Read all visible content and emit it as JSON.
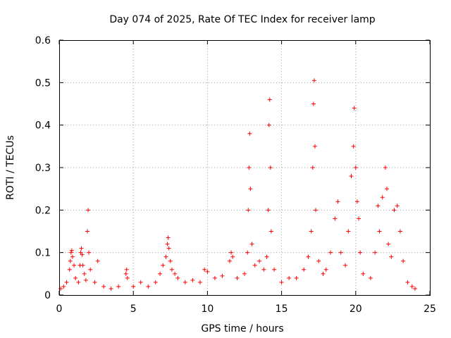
{
  "chart_data": {
    "type": "scatter",
    "title": "Day 074 of 2025, Rate Of TEC Index for receiver lamp",
    "xlabel": "GPS time / hours",
    "ylabel": "ROTI / TECUs",
    "xlim": [
      0,
      25
    ],
    "ylim": [
      0,
      0.6
    ],
    "x_ticks": [
      "0",
      "5",
      "10",
      "15",
      "20",
      "25"
    ],
    "y_ticks": [
      "0",
      "0.1",
      "0.2",
      "0.3",
      "0.4",
      "0.5",
      "0.6"
    ],
    "grid": true,
    "marker": "plus",
    "color": "#ff0000",
    "series": [
      {
        "points": [
          [
            0.1,
            0.015
          ],
          [
            0.3,
            0.02
          ],
          [
            0.5,
            0.03
          ],
          [
            0.7,
            0.06
          ],
          [
            0.75,
            0.08
          ],
          [
            0.8,
            0.1
          ],
          [
            0.85,
            0.105
          ],
          [
            0.9,
            0.09
          ],
          [
            1.0,
            0.07
          ],
          [
            1.1,
            0.04
          ],
          [
            1.3,
            0.03
          ],
          [
            1.4,
            0.07
          ],
          [
            1.45,
            0.1
          ],
          [
            1.5,
            0.11
          ],
          [
            1.55,
            0.095
          ],
          [
            1.6,
            0.07
          ],
          [
            1.7,
            0.05
          ],
          [
            1.8,
            0.035
          ],
          [
            1.9,
            0.15
          ],
          [
            1.95,
            0.2
          ],
          [
            2.0,
            0.1
          ],
          [
            2.1,
            0.06
          ],
          [
            2.4,
            0.03
          ],
          [
            2.6,
            0.08
          ],
          [
            3.0,
            0.02
          ],
          [
            3.5,
            0.015
          ],
          [
            4.0,
            0.02
          ],
          [
            4.5,
            0.05
          ],
          [
            4.55,
            0.06
          ],
          [
            4.6,
            0.04
          ],
          [
            5.0,
            0.02
          ],
          [
            5.5,
            0.03
          ],
          [
            6.0,
            0.02
          ],
          [
            6.5,
            0.03
          ],
          [
            6.8,
            0.05
          ],
          [
            7.0,
            0.07
          ],
          [
            7.2,
            0.09
          ],
          [
            7.3,
            0.12
          ],
          [
            7.35,
            0.135
          ],
          [
            7.4,
            0.11
          ],
          [
            7.5,
            0.08
          ],
          [
            7.6,
            0.06
          ],
          [
            7.8,
            0.05
          ],
          [
            8.0,
            0.04
          ],
          [
            8.5,
            0.03
          ],
          [
            9.0,
            0.035
          ],
          [
            9.5,
            0.03
          ],
          [
            9.8,
            0.06
          ],
          [
            10.0,
            0.055
          ],
          [
            10.5,
            0.04
          ],
          [
            11.0,
            0.045
          ],
          [
            11.5,
            0.08
          ],
          [
            11.6,
            0.1
          ],
          [
            11.7,
            0.09
          ],
          [
            12.0,
            0.04
          ],
          [
            12.5,
            0.05
          ],
          [
            12.7,
            0.1
          ],
          [
            12.75,
            0.2
          ],
          [
            12.8,
            0.3
          ],
          [
            12.85,
            0.38
          ],
          [
            12.9,
            0.25
          ],
          [
            13.0,
            0.12
          ],
          [
            13.2,
            0.07
          ],
          [
            13.5,
            0.08
          ],
          [
            13.8,
            0.06
          ],
          [
            14.0,
            0.09
          ],
          [
            14.1,
            0.2
          ],
          [
            14.15,
            0.4
          ],
          [
            14.2,
            0.46
          ],
          [
            14.25,
            0.3
          ],
          [
            14.3,
            0.15
          ],
          [
            14.5,
            0.06
          ],
          [
            15.0,
            0.03
          ],
          [
            15.5,
            0.04
          ],
          [
            16.0,
            0.04
          ],
          [
            16.5,
            0.06
          ],
          [
            16.8,
            0.09
          ],
          [
            17.0,
            0.15
          ],
          [
            17.1,
            0.3
          ],
          [
            17.15,
            0.45
          ],
          [
            17.2,
            0.505
          ],
          [
            17.25,
            0.35
          ],
          [
            17.3,
            0.2
          ],
          [
            17.5,
            0.08
          ],
          [
            17.8,
            0.05
          ],
          [
            18.0,
            0.06
          ],
          [
            18.3,
            0.1
          ],
          [
            18.6,
            0.18
          ],
          [
            18.8,
            0.22
          ],
          [
            19.0,
            0.1
          ],
          [
            19.3,
            0.07
          ],
          [
            19.5,
            0.15
          ],
          [
            19.7,
            0.28
          ],
          [
            19.85,
            0.35
          ],
          [
            19.9,
            0.44
          ],
          [
            20.0,
            0.3
          ],
          [
            20.1,
            0.22
          ],
          [
            20.2,
            0.18
          ],
          [
            20.3,
            0.1
          ],
          [
            20.5,
            0.05
          ],
          [
            21.0,
            0.04
          ],
          [
            21.3,
            0.1
          ],
          [
            21.5,
            0.21
          ],
          [
            21.6,
            0.15
          ],
          [
            21.8,
            0.23
          ],
          [
            22.0,
            0.3
          ],
          [
            22.1,
            0.25
          ],
          [
            22.2,
            0.12
          ],
          [
            22.4,
            0.09
          ],
          [
            22.6,
            0.2
          ],
          [
            22.8,
            0.21
          ],
          [
            23.0,
            0.15
          ],
          [
            23.2,
            0.08
          ],
          [
            23.5,
            0.03
          ],
          [
            23.8,
            0.02
          ],
          [
            24.0,
            0.015
          ]
        ]
      }
    ]
  }
}
